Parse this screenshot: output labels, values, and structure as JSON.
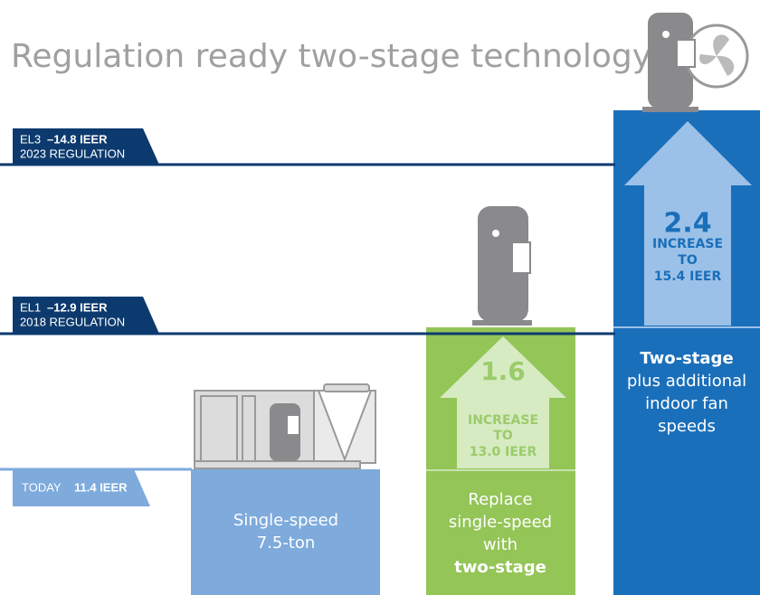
{
  "title": "Regulation ready two-stage technology",
  "levels": [
    {
      "tag": "EL3",
      "value": "–14.8 IEER",
      "note": "2023 REGULATION"
    },
    {
      "tag": "EL1",
      "value": "–12.9 IEER",
      "note": "2018 REGULATION"
    },
    {
      "tag": "TODAY",
      "value": "11.4 IEER"
    }
  ],
  "columns": [
    {
      "lines": [
        "Single-speed",
        "7.5-ton"
      ]
    },
    {
      "increase": {
        "amount": "1.6",
        "lines": [
          "INCREASE",
          "TO",
          "13.0 IEER"
        ]
      },
      "lines": [
        "Replace",
        "single-speed",
        "with",
        "two-stage"
      ]
    },
    {
      "increase": {
        "amount": "2.4",
        "lines": [
          "INCREASE",
          "TO",
          "15.4 IEER"
        ]
      },
      "lines": [
        "Two-stage",
        "plus additional",
        "indoor fan",
        "speeds"
      ]
    }
  ]
}
